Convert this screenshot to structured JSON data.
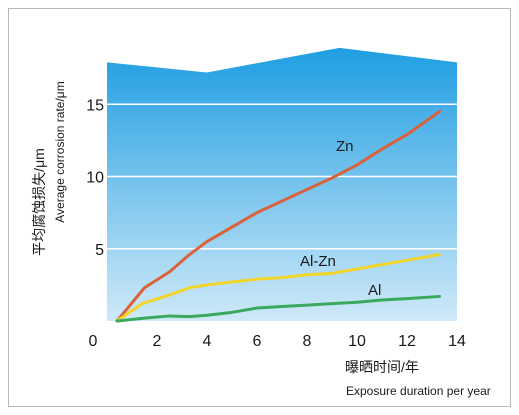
{
  "chart_data": {
    "type": "line",
    "title": "",
    "xlabel_zh": "曝晒时间/年",
    "xlabel_en": "Exposure duration per year",
    "ylabel_zh": "平均腐蚀损失/μm",
    "ylabel_en": "Average corrosion rate/μm",
    "xlim": [
      0,
      14
    ],
    "ylim": [
      0,
      18
    ],
    "x_ticks": [
      "0",
      "2",
      "4",
      "6",
      "8",
      "10",
      "12",
      "14"
    ],
    "y_ticks": [
      "5",
      "10",
      "15"
    ],
    "grid": true,
    "legend": "none (inline labels)",
    "background_top_edge": [
      {
        "x": 0,
        "y": 17.9
      },
      {
        "x": 4,
        "y": 17.2
      },
      {
        "x": 9.3,
        "y": 18.9
      },
      {
        "x": 14,
        "y": 17.9
      }
    ],
    "series": [
      {
        "name": "Zn",
        "color": "#d9623b",
        "points": [
          [
            0.4,
            0.0
          ],
          [
            1.5,
            2.3
          ],
          [
            2.5,
            3.4
          ],
          [
            3.3,
            4.6
          ],
          [
            4.0,
            5.5
          ],
          [
            5.0,
            6.5
          ],
          [
            6.0,
            7.5
          ],
          [
            7.0,
            8.3
          ],
          [
            8.0,
            9.1
          ],
          [
            9.0,
            9.9
          ],
          [
            10.0,
            10.8
          ],
          [
            11.0,
            11.9
          ],
          [
            12.0,
            12.9
          ],
          [
            13.3,
            14.5
          ]
        ]
      },
      {
        "name": "Al-Zn",
        "color": "#f1d52a",
        "points": [
          [
            0.4,
            0.0
          ],
          [
            1.4,
            1.2
          ],
          [
            2.5,
            1.8
          ],
          [
            3.3,
            2.3
          ],
          [
            4.0,
            2.5
          ],
          [
            5.0,
            2.7
          ],
          [
            6.0,
            2.9
          ],
          [
            7.0,
            3.0
          ],
          [
            8.0,
            3.2
          ],
          [
            9.0,
            3.3
          ],
          [
            10.0,
            3.6
          ],
          [
            11.0,
            3.9
          ],
          [
            12.0,
            4.2
          ],
          [
            13.3,
            4.6
          ]
        ]
      },
      {
        "name": "Al",
        "color": "#3aa95e",
        "points": [
          [
            0.4,
            0.0
          ],
          [
            1.5,
            0.2
          ],
          [
            2.5,
            0.35
          ],
          [
            3.3,
            0.3
          ],
          [
            4.0,
            0.4
          ],
          [
            5.0,
            0.6
          ],
          [
            6.0,
            0.9
          ],
          [
            7.0,
            1.0
          ],
          [
            8.0,
            1.1
          ],
          [
            9.0,
            1.2
          ],
          [
            10.0,
            1.3
          ],
          [
            11.0,
            1.45
          ],
          [
            12.0,
            1.55
          ],
          [
            13.3,
            1.7
          ]
        ]
      }
    ]
  },
  "colors": {
    "gradient_top": "#1f9ee2",
    "gradient_bottom": "#cfe9f8",
    "grid": "#ffffff"
  }
}
